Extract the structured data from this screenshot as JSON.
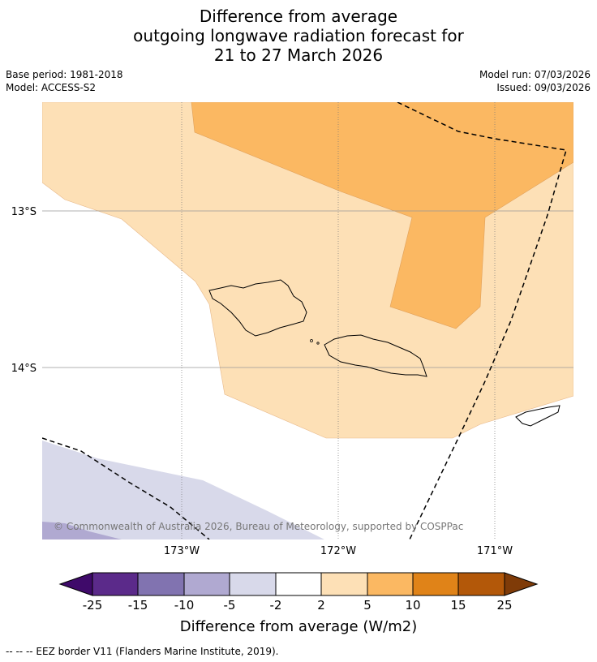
{
  "title": {
    "line1": "Difference from average",
    "line2": "outgoing longwave radiation forecast for",
    "line3": "21 to 27 March 2026"
  },
  "meta": {
    "base_period": "Base period: 1981-2018",
    "model": "Model: ACCESS-S2",
    "model_run": "Model run: 07/03/2026",
    "issued": "Issued: 09/03/2026"
  },
  "map": {
    "lat_labels": [
      "13°S",
      "14°S"
    ],
    "lon_labels": [
      "173°W",
      "172°W",
      "171°W"
    ],
    "copyright": "© Commonwealth of Australia 2026, Bureau of Meteorology, supported by COSPPac",
    "colors": {
      "pos_2_5": "#fde0b6",
      "pos_5_10": "#fbb862",
      "neg_2_5": "#d8d9ea",
      "neg_5_10": "#b0a9d1"
    }
  },
  "colorbar": {
    "ticks": [
      "-25",
      "-15",
      "-10",
      "-5",
      "-2",
      "2",
      "5",
      "10",
      "15",
      "25"
    ],
    "colors": [
      "#3f0a6a",
      "#5b2a8a",
      "#8173b0",
      "#b0a9d1",
      "#d8d9ea",
      "#ffffff",
      "#fde0b6",
      "#fbb862",
      "#e08318",
      "#b35809",
      "#7f3b08"
    ],
    "label": "Difference from average (W/m2)"
  },
  "footer": {
    "legend": "--  --  -- EEZ border V11 (Flanders Marine Institute, 2019)."
  }
}
